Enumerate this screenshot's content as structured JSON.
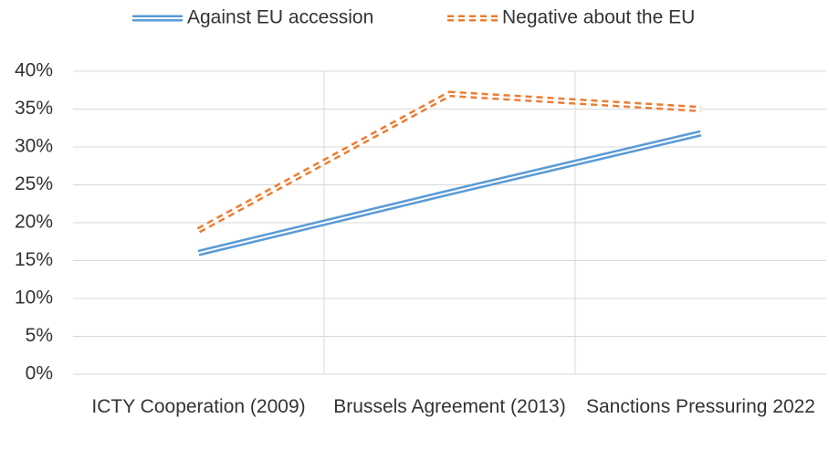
{
  "chart_data": {
    "type": "line",
    "categories": [
      "ICTY Cooperation (2009)",
      "Brussels Agreement (2013)",
      "Sanctions Pressuring 2022"
    ],
    "series": [
      {
        "name": "Against EU accession",
        "color": "#5b9bd5",
        "style": "double",
        "values": [
          16,
          24,
          31.8
        ]
      },
      {
        "name": "Negative about the EU",
        "color": "#ed7d31",
        "style": "dashed-double",
        "values": [
          19,
          37,
          35
        ]
      }
    ],
    "ylim": [
      0,
      40
    ],
    "yticks": [
      {
        "value": 0,
        "label": "0%"
      },
      {
        "value": 5,
        "label": "5%"
      },
      {
        "value": 10,
        "label": "10%"
      },
      {
        "value": 15,
        "label": "15%"
      },
      {
        "value": 20,
        "label": "20%"
      },
      {
        "value": 25,
        "label": "25%"
      },
      {
        "value": 30,
        "label": "30%"
      },
      {
        "value": 35,
        "label": "35%"
      },
      {
        "value": 40,
        "label": "40%"
      }
    ],
    "grid": true,
    "legend": "top"
  }
}
